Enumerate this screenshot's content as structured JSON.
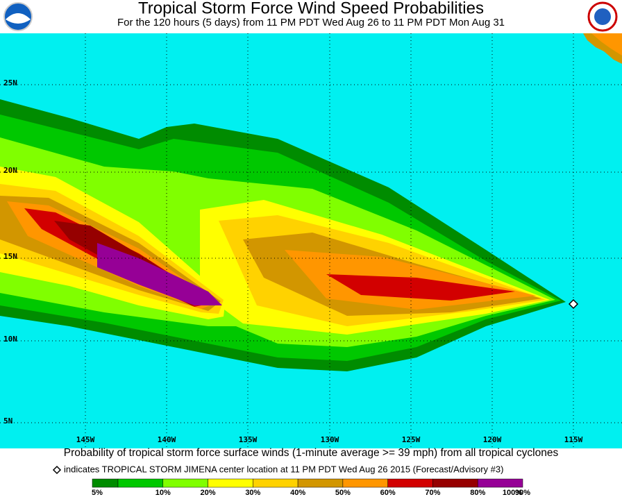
{
  "header": {
    "title": "Tropical Storm Force Wind Speed Probabilities",
    "subtitle": "For the 120 hours (5 days) from 11 PM PDT Wed Aug 26 to 11 PM PDT Mon Aug 31"
  },
  "map": {
    "lat_labels": [
      "25N",
      "20N",
      "15N",
      "10N",
      "5N"
    ],
    "lon_labels": [
      "145W",
      "140W",
      "135W",
      "130W",
      "125W",
      "120W",
      "115W"
    ]
  },
  "footer": {
    "caption": "Probability of tropical storm force surface winds (1-minute average >= 39 mph) from all tropical cyclones",
    "note": "indicates TROPICAL STORM JIMENA center location at 11 PM PDT Wed Aug 26 2015 (Forecast/Advisory #3)"
  },
  "legend": {
    "labels": [
      "5%",
      "10%",
      "20%",
      "30%",
      "40%",
      "50%",
      "60%",
      "70%",
      "80%",
      "90%",
      "100%"
    ],
    "colors": [
      "#008c00",
      "#00c800",
      "#80ff00",
      "#ffff00",
      "#ffd200",
      "#d29600",
      "#ff9600",
      "#d20000",
      "#960000",
      "#960096"
    ]
  }
}
